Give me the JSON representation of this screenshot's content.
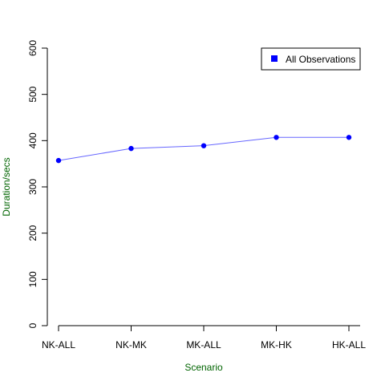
{
  "chart_data": {
    "type": "line",
    "title": "",
    "xlabel": "Scenario",
    "ylabel": "Duration/secs",
    "categories": [
      "NK-ALL",
      "NK-MK",
      "MK-ALL",
      "MK-HK",
      "HK-ALL"
    ],
    "series": [
      {
        "name": "All Observations",
        "values": [
          357,
          383,
          389,
          407,
          407
        ]
      }
    ],
    "ylim": [
      0,
      600
    ],
    "yticks": [
      "0",
      "100",
      "200",
      "300",
      "400",
      "500",
      "600"
    ],
    "legend": {
      "position": "top-right",
      "entries": [
        "All Observations"
      ]
    },
    "grid": false,
    "colors": {
      "series": "#0000ff",
      "line": "#6666ff",
      "axis_label": "#006400",
      "axis": "#000000"
    }
  }
}
